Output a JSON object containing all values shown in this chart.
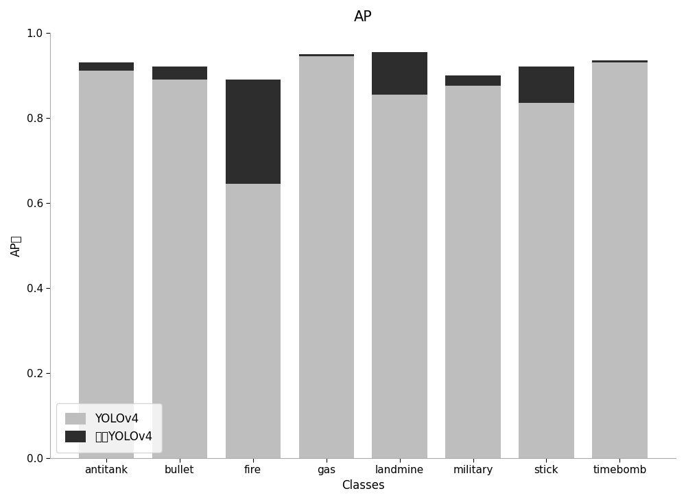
{
  "categories": [
    "antitank",
    "bullet",
    "fire",
    "gas",
    "landmine",
    "military",
    "stick",
    "timebomb"
  ],
  "yolov4_values": [
    0.91,
    0.89,
    0.645,
    0.945,
    0.855,
    0.875,
    0.835,
    0.93
  ],
  "improved_values": [
    0.93,
    0.92,
    0.89,
    0.95,
    0.955,
    0.9,
    0.92,
    0.935
  ],
  "yolov4_color": "#BEBEBE",
  "improved_color": "#2d2d2d",
  "title": "AP",
  "xlabel": "Classes",
  "ylabel": "AP值",
  "ylim": [
    0.0,
    1.0
  ],
  "yticks": [
    0.0,
    0.2,
    0.4,
    0.6,
    0.8,
    1.0
  ],
  "legend_yolov4": "YOLOv4",
  "legend_improved": "改进YOLOv4",
  "background_color": "#ffffff",
  "title_fontsize": 15,
  "label_fontsize": 12,
  "tick_fontsize": 11,
  "bar_width": 0.75
}
